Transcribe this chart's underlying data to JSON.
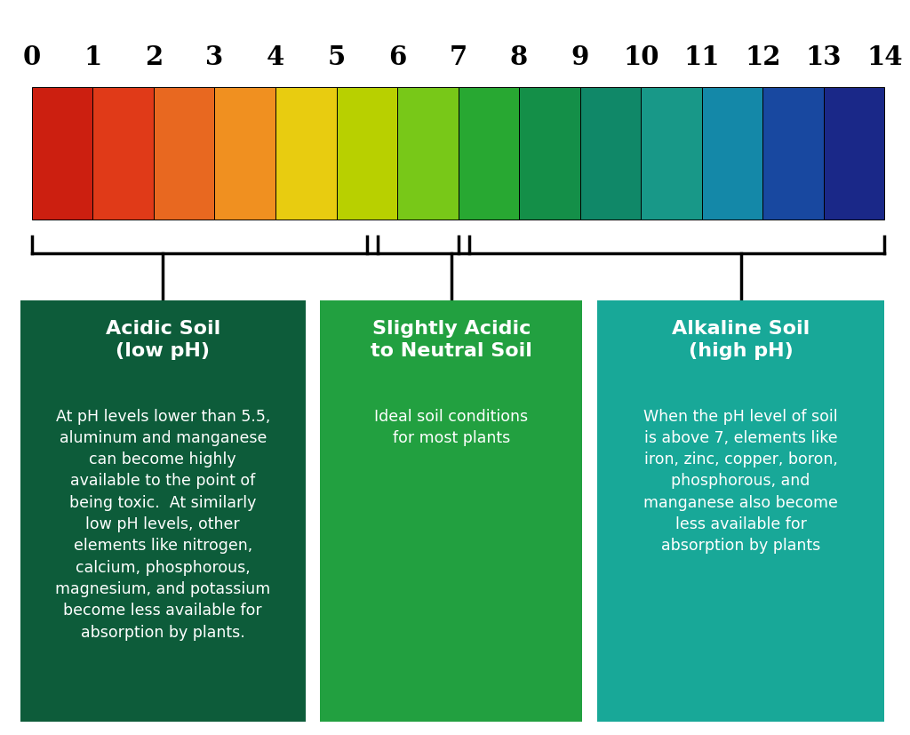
{
  "background_color": "#ffffff",
  "ph_colors": [
    "#cc1f10",
    "#e03a18",
    "#e86820",
    "#f09020",
    "#e8cc10",
    "#b8d000",
    "#78c818",
    "#28a832",
    "#148f48",
    "#108868",
    "#189888",
    "#1488a8",
    "#1848a0",
    "#1a2888",
    "#2a1070"
  ],
  "ph_labels": [
    "0",
    "1",
    "2",
    "3",
    "4",
    "5",
    "6",
    "7",
    "8",
    "9",
    "10",
    "11",
    "12",
    "13",
    "14"
  ],
  "box1_color": "#0d5c3a",
  "box2_color": "#22a040",
  "box3_color": "#18a898",
  "box1_title": "Acidic Soil\n(low pH)",
  "box2_title": "Slightly Acidic\nto Neutral Soil",
  "box3_title": "Alkaline Soil\n(high pH)",
  "box1_text": "At pH levels lower than 5.5,\naluminum and manganese\ncan become highly\navailable to the point of\nbeing toxic.  At similarly\nlow pH levels, other\nelements like nitrogen,\ncalcium, phosphorous,\nmagnesium, and potassium\nbecome less available for\nabsorption by plants.",
  "box2_text": "Ideal soil conditions\nfor most plants",
  "box3_text": "When the pH level of soil\nis above 7, elements like\niron, zinc, copper, boron,\nphosphorous, and\nmanganese also become\nless available for\nabsorption by plants",
  "title_fontsize": 16,
  "body_fontsize": 12.5,
  "tick_fontsize": 21
}
